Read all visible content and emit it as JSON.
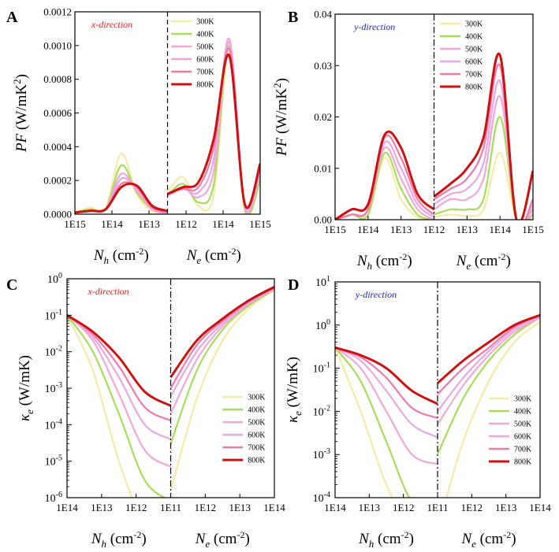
{
  "colors": {
    "300K": "#f5eaa8",
    "400K": "#a6de5a",
    "500K": "#f2a8d6",
    "600K": "#e8a8e8",
    "700K": "#f07aa8",
    "800K": "#cc1111"
  },
  "chart_data": [
    {
      "panel": "A",
      "type": "line",
      "scale": "linear",
      "direction_label": "x-direction",
      "direction_color": "#e02020",
      "ylim": [
        0,
        0.0012
      ],
      "yticks": [
        "0.0000",
        "0.0002",
        "0.0004",
        "0.0006",
        "0.0008",
        "0.0010",
        "0.0012"
      ],
      "xticks": [
        "1E15",
        "1E14",
        "1E13",
        "1E12",
        "1E14",
        "1E15"
      ],
      "ylabel": "PF (W/mK2)",
      "xlabel_left": "Nh (cm-2)",
      "xlabel_right": "Ne (cm-2)",
      "separator": "dash",
      "legend": [
        "300K",
        "400K",
        "500K",
        "600K",
        "700K",
        "800K"
      ],
      "series": [
        {
          "name": "300K",
          "left": [
            1e-05,
            4e-05,
            4e-05,
            0.00036,
            0.00012,
            2e-05,
            0.0
          ],
          "right": [
            0.00013,
            0.00022,
            5e-05,
            0.00012,
            0.00098,
            2e-05,
            0.0
          ]
        },
        {
          "name": "400K",
          "left": [
            1e-05,
            3e-05,
            3e-05,
            0.00029,
            0.00013,
            3e-05,
            0.0
          ],
          "right": [
            0.00011,
            0.00018,
            7e-05,
            0.00018,
            0.001,
            3e-05,
            0.0002
          ]
        },
        {
          "name": "500K",
          "left": [
            1e-05,
            2e-05,
            3e-05,
            0.00024,
            0.00014,
            3e-05,
            0.0
          ],
          "right": [
            0.00011,
            0.00016,
            0.0001,
            0.00026,
            0.00102,
            4e-05,
            0.00024
          ]
        },
        {
          "name": "600K",
          "left": [
            1e-05,
            2e-05,
            3e-05,
            0.00021,
            0.00015,
            4e-05,
            0.0
          ],
          "right": [
            0.00011,
            0.00015,
            0.00013,
            0.00033,
            0.00104,
            5e-05,
            0.00026
          ]
        },
        {
          "name": "700K",
          "left": [
            1e-05,
            2e-05,
            3e-05,
            0.00018,
            0.00016,
            4e-05,
            1e-05
          ],
          "right": [
            0.00012,
            0.00015,
            0.00016,
            0.0004,
            0.00098,
            6e-05,
            0.00028
          ]
        },
        {
          "name": "800K",
          "left": [
            1e-05,
            2e-05,
            3e-05,
            0.00016,
            0.00017,
            5e-05,
            2e-05
          ],
          "right": [
            0.00012,
            0.00016,
            0.00019,
            0.00045,
            0.00094,
            6e-05,
            0.0003
          ]
        }
      ]
    },
    {
      "panel": "B",
      "type": "line",
      "scale": "linear",
      "direction_label": "y-direction",
      "direction_color": "#2020d0",
      "ylim": [
        0,
        0.04
      ],
      "yticks": [
        "0.00",
        "0.01",
        "0.02",
        "0.03",
        "0.04"
      ],
      "xticks": [
        "1E15",
        "1E14",
        "1E13",
        "1E12",
        "1E13",
        "1E14",
        "1E15"
      ],
      "ylabel": "PF (W/mK2)",
      "xlabel_left": "Nh (cm-2)",
      "xlabel_right": "Ne (cm-2)",
      "separator": "dashdot",
      "legend": [
        "300K",
        "400K",
        "500K",
        "600K",
        "700K",
        "800K"
      ],
      "series": [
        {
          "name": "300K",
          "left": [
            0.0,
            0.001,
            0.001,
            0.012,
            0.004,
            0.0005,
            0.0
          ],
          "right": [
            0.0005,
            0.001,
            0.0008,
            0.002,
            0.013,
            0.0,
            0.0
          ]
        },
        {
          "name": "400K",
          "left": [
            0.0,
            0.001,
            0.001,
            0.013,
            0.006,
            0.001,
            0.0
          ],
          "right": [
            0.001,
            0.002,
            0.002,
            0.004,
            0.02,
            0.0,
            0.001
          ]
        },
        {
          "name": "500K",
          "left": [
            0.0,
            0.001,
            0.002,
            0.014,
            0.008,
            0.002,
            0.0
          ],
          "right": [
            0.002,
            0.004,
            0.004,
            0.008,
            0.024,
            0.0,
            0.002
          ]
        },
        {
          "name": "600K",
          "left": [
            0.0,
            0.001,
            0.002,
            0.015,
            0.01,
            0.003,
            0.0005
          ],
          "right": [
            0.003,
            0.005,
            0.006,
            0.011,
            0.027,
            0.0,
            0.003
          ]
        },
        {
          "name": "700K",
          "left": [
            0.0,
            0.001,
            0.002,
            0.016,
            0.012,
            0.004,
            0.001
          ],
          "right": [
            0.004,
            0.006,
            0.008,
            0.014,
            0.03,
            0.0,
            0.004
          ]
        },
        {
          "name": "800K",
          "left": [
            0.0,
            0.002,
            0.003,
            0.0165,
            0.014,
            0.005,
            0.002
          ],
          "right": [
            0.0045,
            0.007,
            0.01,
            0.016,
            0.032,
            0.0,
            0.0095
          ]
        }
      ]
    },
    {
      "panel": "C",
      "type": "line",
      "scale": "log",
      "direction_label": "x-direction",
      "direction_color": "#e02020",
      "ylim_exp": [
        -6,
        0
      ],
      "ytick_exps": [
        -6,
        -5,
        -4,
        -3,
        -2,
        -1,
        0
      ],
      "xticks": [
        "1E14",
        "1E13",
        "1E12",
        "1E11",
        "1E12",
        "1E13",
        "1E14"
      ],
      "ylabel": "κe (W/mK)",
      "xlabel_left": "Nh (cm-2)",
      "xlabel_right": "Ne (cm-2)",
      "separator": "dashdot",
      "legend": [
        "300K",
        "400K",
        "500K",
        "600K",
        "700K",
        "800K"
      ],
      "series": [
        {
          "name": "300K",
          "left": [
            0.1,
            0.003,
            1e-05,
            2e-07,
            1e-07
          ],
          "right": [
            1.5e-06,
            0.0005,
            0.02,
            0.15,
            0.5
          ]
        },
        {
          "name": "400K",
          "left": [
            0.1,
            0.01,
            0.0002,
            3e-06,
            8e-07
          ],
          "right": [
            3e-05,
            0.003,
            0.04,
            0.18,
            0.5
          ]
        },
        {
          "name": "500K",
          "left": [
            0.1,
            0.02,
            0.0007,
            2e-05,
            7e-06
          ],
          "right": [
            0.0002,
            0.006,
            0.05,
            0.2,
            0.52
          ]
        },
        {
          "name": "600K",
          "left": [
            0.1,
            0.025,
            0.002,
            0.0001,
            4e-05
          ],
          "right": [
            0.0006,
            0.01,
            0.06,
            0.22,
            0.54
          ]
        },
        {
          "name": "700K",
          "left": [
            0.1,
            0.03,
            0.004,
            0.0003,
            0.00013
          ],
          "right": [
            0.001,
            0.015,
            0.07,
            0.24,
            0.56
          ]
        },
        {
          "name": "800K",
          "left": [
            0.1,
            0.035,
            0.007,
            0.0008,
            0.00033
          ],
          "right": [
            0.002,
            0.02,
            0.08,
            0.25,
            0.6
          ]
        }
      ]
    },
    {
      "panel": "D",
      "type": "line",
      "scale": "log",
      "direction_label": "y-direction",
      "direction_color": "#2020d0",
      "ylim_exp": [
        -4,
        1
      ],
      "ytick_exps": [
        -4,
        -3,
        -2,
        -1,
        0,
        1
      ],
      "xticks": [
        "1E14",
        "1E13",
        "1E12",
        "1E11",
        "1E12",
        "1E13",
        "1E14"
      ],
      "ylabel": "κe (W/mK)",
      "xlabel_left": "Nh (cm-2)",
      "xlabel_right": "Ne (cm-2)",
      "separator": "dashdot",
      "legend": [
        "300K",
        "400K",
        "500K",
        "600K",
        "700K",
        "800K"
      ],
      "series": [
        {
          "name": "300K",
          "left": [
            0.3,
            0.01,
            0.0002,
            1e-05,
            5e-06
          ],
          "right": [
            1e-05,
            0.002,
            0.05,
            0.4,
            1.2
          ]
        },
        {
          "name": "400K",
          "left": [
            0.3,
            0.05,
            0.002,
            8e-05,
            5e-05
          ],
          "right": [
            0.001,
            0.02,
            0.15,
            0.6,
            1.5
          ]
        },
        {
          "name": "500K",
          "left": [
            0.3,
            0.1,
            0.01,
            0.001,
            0.0006
          ],
          "right": [
            0.005,
            0.04,
            0.2,
            0.7,
            1.5
          ]
        },
        {
          "name": "600K",
          "left": [
            0.3,
            0.15,
            0.03,
            0.005,
            0.0025
          ],
          "right": [
            0.01,
            0.06,
            0.25,
            0.8,
            1.6
          ]
        },
        {
          "name": "700K",
          "left": [
            0.3,
            0.18,
            0.06,
            0.012,
            0.007
          ],
          "right": [
            0.025,
            0.1,
            0.3,
            0.9,
            1.7
          ]
        },
        {
          "name": "800K",
          "left": [
            0.3,
            0.2,
            0.1,
            0.03,
            0.015
          ],
          "right": [
            0.045,
            0.15,
            0.4,
            1.0,
            1.7
          ]
        }
      ]
    }
  ]
}
